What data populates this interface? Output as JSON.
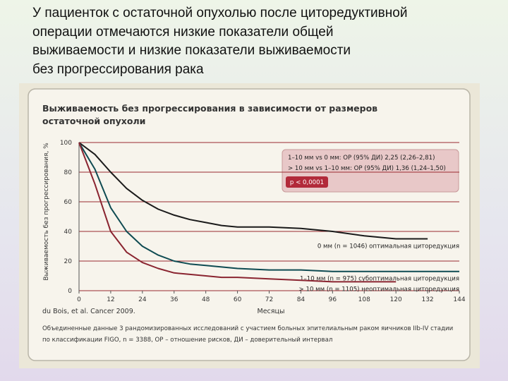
{
  "heading": [
    "У пациенток с остаточной опухолью после циторедуктивной",
    "операции отмечаются низкие показатели общей",
    "выживаемости и низкие показатели выживаемости",
    "без прогрессирования рака"
  ],
  "chart_data": {
    "type": "line",
    "title": [
      "Выживаемость без прогрессирования в зависимости от размеров",
      "остаточной опухоли"
    ],
    "y_label": "Выживаемость без прогрессирования, %",
    "x_label": "Месяцы",
    "source": "du Bois, et al. Cancer 2009.",
    "footnote": [
      "Объединенные данные 3 рандомизированных исследований с участием больных эпителиальным раком яичников IIb-IV стадии",
      "по классификации FIGO, n = 3388, ОР – отношение рисков, ДИ – доверительный интервал"
    ],
    "annotations": [
      "1–10 мм vs 0 мм: ОР (95% ДИ) 2,25 (2,26–2,81)",
      "> 10 мм vs 1–10 мм: ОР (95% ДИ) 1,36 (1,24–1,50)"
    ],
    "p_value": "p < 0,0001",
    "x": [
      0,
      6,
      12,
      18,
      24,
      30,
      36,
      42,
      48,
      54,
      60,
      72,
      84,
      96,
      108,
      120,
      132,
      144
    ],
    "series": [
      {
        "name": "0 мм (n = 1046) оптимальная циторедукция",
        "color": "#1a1a1a",
        "values": [
          100,
          92,
          80,
          69,
          61,
          55,
          51,
          48,
          46,
          44,
          43,
          43,
          42,
          40,
          37,
          35,
          35,
          null
        ]
      },
      {
        "name": "1–10 мм (n = 975) субоптимальная циторедукция",
        "color": "#0f4b52",
        "values": [
          100,
          82,
          56,
          40,
          30,
          24,
          20,
          18,
          17,
          16,
          15,
          14,
          14,
          13,
          13,
          13,
          13,
          13
        ]
      },
      {
        "name": "> 10 мм (n = 1105) неоптимальная циторедукция",
        "color": "#8a2430",
        "values": [
          100,
          72,
          40,
          26,
          19,
          15,
          12,
          11,
          10,
          9,
          9,
          8,
          7,
          6,
          6,
          6,
          null,
          null
        ]
      }
    ],
    "xlim": [
      0,
      144
    ],
    "ylim": [
      0,
      100
    ],
    "xticks": [
      0,
      12,
      24,
      36,
      48,
      60,
      72,
      84,
      96,
      108,
      120,
      132,
      144
    ],
    "yticks": [
      0,
      20,
      40,
      60,
      80,
      100
    ],
    "grid": true
  }
}
